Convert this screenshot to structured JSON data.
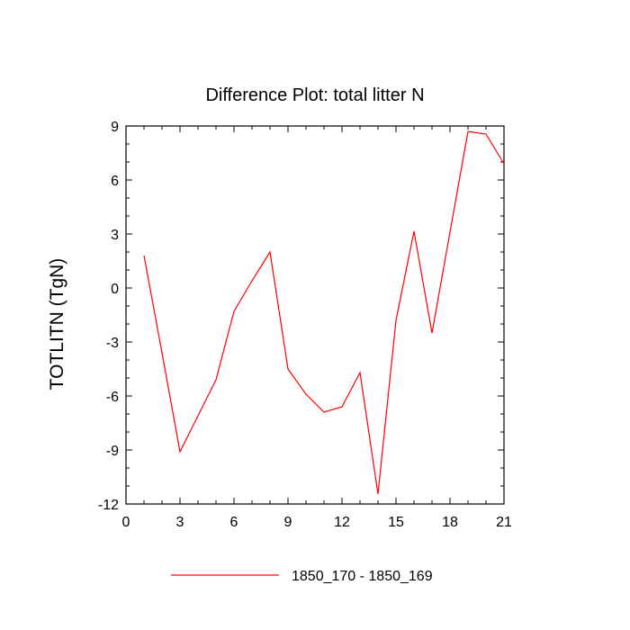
{
  "chart_data": {
    "type": "line",
    "title": "Difference Plot: total litter N",
    "xlabel": "",
    "ylabel": "TOTLITN  (TgN)",
    "xlim": [
      0,
      21
    ],
    "ylim": [
      -12,
      9
    ],
    "xticks": [
      0,
      3,
      6,
      9,
      12,
      15,
      18,
      21
    ],
    "yticks": [
      -12,
      -9,
      -6,
      -3,
      0,
      3,
      6,
      9
    ],
    "x_tick_labels": [
      "0",
      "3",
      "6",
      "9",
      "12",
      "15",
      "18",
      "21"
    ],
    "y_tick_labels": [
      "-12",
      "-9",
      "-6",
      "-3",
      "0",
      "3",
      "6",
      "9"
    ],
    "grid": false,
    "legend_position": "bottom",
    "series": [
      {
        "name": "1850_170 - 1850_169",
        "color": "#ff0000",
        "x": [
          1,
          2,
          3,
          4,
          5,
          6,
          7,
          8,
          9,
          10,
          11,
          12,
          13,
          14,
          15,
          16,
          17,
          18,
          19,
          20,
          21
        ],
        "y": [
          1.8,
          -3.6,
          -9.1,
          -7.1,
          -5.1,
          -1.3,
          0.4,
          2.0,
          -4.5,
          -5.9,
          -6.9,
          -6.6,
          -4.7,
          -11.45,
          -1.8,
          3.15,
          -2.5,
          3.1,
          8.7,
          8.55,
          6.9
        ]
      }
    ]
  }
}
